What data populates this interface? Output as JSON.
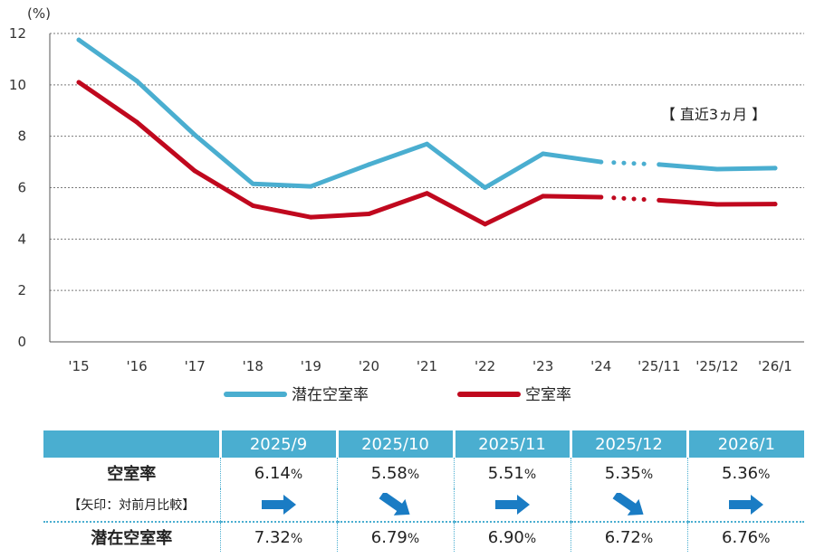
{
  "chart_data": {
    "type": "line",
    "unit_label": "(%)",
    "categories": [
      "'15",
      "'16",
      "'17",
      "'18",
      "'19",
      "'20",
      "'21",
      "'22",
      "'23",
      "'24",
      "'25/11",
      "'25/12",
      "'26/1"
    ],
    "ylim": [
      0,
      12
    ],
    "yticks": [
      0,
      2,
      4,
      6,
      8,
      10,
      12
    ],
    "series": [
      {
        "name": "潜在空室率",
        "color": "#4aaed0",
        "values": [
          11.75,
          10.15,
          8.05,
          6.15,
          6.05,
          6.9,
          7.7,
          6.0,
          7.32,
          7.0,
          6.9,
          6.72,
          6.76
        ]
      },
      {
        "name": "空室率",
        "color": "#c0081e",
        "values": [
          10.1,
          8.55,
          6.65,
          5.3,
          4.85,
          4.98,
          5.78,
          4.58,
          5.67,
          5.63,
          5.51,
          5.35,
          5.36
        ]
      }
    ],
    "annotation": "【 直近3ヵ月 】",
    "grid": true,
    "legend_position": "bottom"
  },
  "table": {
    "headers": [
      "2025/9",
      "2025/10",
      "2025/11",
      "2025/12",
      "2026/1"
    ],
    "vacancy_label": "空室率",
    "arrow_label": "【矢印：対前月比較】",
    "latent_label": "潜在空室率",
    "percent_sign": "%",
    "vacancy": [
      "6.14",
      "5.58",
      "5.51",
      "5.35",
      "5.36"
    ],
    "latent": [
      "7.32",
      "6.79",
      "6.90",
      "6.72",
      "6.76"
    ],
    "arrows": [
      "flat",
      "down",
      "flat",
      "down",
      "flat"
    ],
    "arrow_color": "#1a7cc4"
  }
}
